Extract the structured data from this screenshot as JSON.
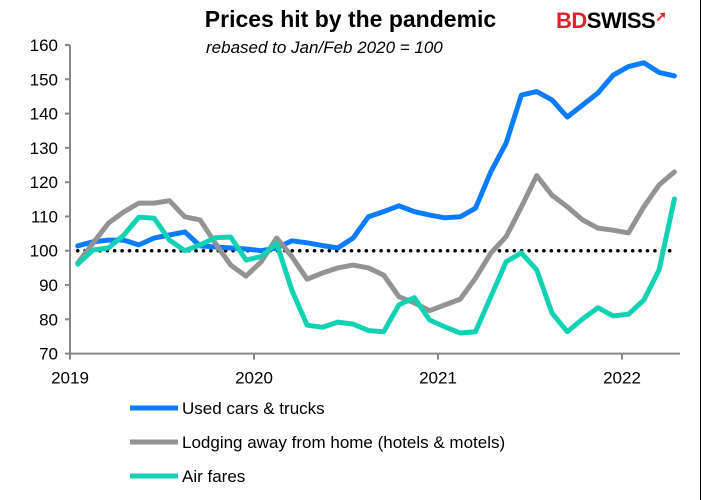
{
  "chart_data": {
    "type": "line",
    "title": "Prices hit by the pandemic",
    "subtitle": "rebased to Jan/Feb 2020 = 100",
    "logo": "BDSWISS",
    "ylim": [
      70,
      160
    ],
    "yticks": [
      70,
      80,
      90,
      100,
      110,
      120,
      130,
      140,
      150,
      160
    ],
    "xticks": [
      "2019",
      "2020",
      "2021",
      "2022"
    ],
    "x": [
      "2019-01",
      "2019-02",
      "2019-03",
      "2019-04",
      "2019-05",
      "2019-06",
      "2019-07",
      "2019-08",
      "2019-09",
      "2019-10",
      "2019-11",
      "2019-12",
      "2020-01",
      "2020-02",
      "2020-03",
      "2020-04",
      "2020-05",
      "2020-06",
      "2020-07",
      "2020-08",
      "2020-09",
      "2020-10",
      "2020-11",
      "2020-12",
      "2021-01",
      "2021-02",
      "2021-03",
      "2021-04",
      "2021-05",
      "2021-06",
      "2021-07",
      "2021-08",
      "2021-09",
      "2021-10",
      "2021-11",
      "2021-12",
      "2022-01",
      "2022-02",
      "2022-03",
      "2022-04"
    ],
    "reference_line": 100,
    "legend_position": "bottom",
    "series": [
      {
        "name": "Used cars & trucks",
        "color": "#0a7cff",
        "values": [
          101.4,
          102.6,
          103.1,
          103.1,
          101.7,
          103.7,
          104.6,
          105.5,
          101.4,
          101.1,
          100.8,
          100.5,
          100,
          100.8,
          102.9,
          102.3,
          101.5,
          100.8,
          103.7,
          109.9,
          111.4,
          113.1,
          111.4,
          110.4,
          109.6,
          109.9,
          112.4,
          123,
          131.4,
          145.4,
          146.4,
          144,
          139,
          142.5,
          146,
          151.2,
          153.7,
          154.8,
          152,
          151
        ]
      },
      {
        "name": "Lodging away from home (hotels & motels)",
        "color": "#939395",
        "values": [
          96.4,
          102.2,
          108,
          111.3,
          113.9,
          113.9,
          114.6,
          109.9,
          109,
          102.2,
          95.8,
          92.6,
          96.8,
          103.7,
          98.3,
          91.7,
          93.5,
          95,
          95.8,
          95,
          92.9,
          86.6,
          84.8,
          82.5,
          84.2,
          85.9,
          92,
          99.3,
          104.1,
          112.8,
          121.9,
          116.2,
          112.8,
          109,
          106.6,
          106,
          105.2,
          112.8,
          119.2,
          123
        ]
      },
      {
        "name": "Air fares",
        "color": "#13d2b3",
        "values": [
          96.1,
          100.2,
          100.8,
          104.5,
          109.8,
          109.5,
          103.1,
          100,
          101.7,
          103.8,
          104,
          97.3,
          98.3,
          102.2,
          88.5,
          78.3,
          77.7,
          79.2,
          78.6,
          76.7,
          76.4,
          84.2,
          86.3,
          79.8,
          77.8,
          76,
          76.4,
          86.6,
          96.8,
          99.4,
          94.4,
          81.8,
          76.4,
          80.1,
          83.4,
          81,
          81.5,
          85.6,
          94.4,
          115.1
        ]
      }
    ]
  }
}
